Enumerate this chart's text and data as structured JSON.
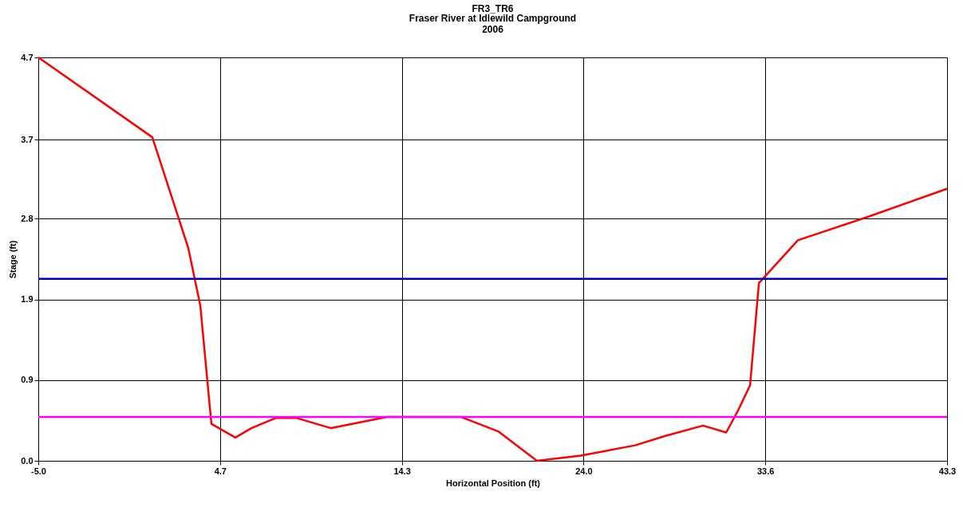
{
  "chart_data": {
    "type": "line",
    "title": "FR3_TR6",
    "subtitle": "Fraser River at Idlewild Campground\n2006",
    "xlabel": "Horizontal Position (ft)",
    "ylabel": "Stage (ft)",
    "x": [
      -5.0,
      1.06,
      2.97,
      3.61,
      4.2,
      5.47,
      6.32,
      7.64,
      8.7,
      10.56,
      13.53,
      17.48,
      19.47,
      21.5,
      23.84,
      26.72,
      28.33,
      30.33,
      31.56,
      32.2,
      32.83,
      33.3,
      35.37,
      39.06,
      43.3
    ],
    "series": [
      {
        "color": "#ff0000",
        "values": [
          4.7,
          3.77,
          2.48,
          1.81,
          0.43,
          0.27,
          0.38,
          0.5,
          0.5,
          0.38,
          0.51,
          0.51,
          0.34,
          0.0,
          0.06,
          0.18,
          0.29,
          0.41,
          0.33,
          0.59,
          0.88,
          2.07,
          2.57,
          2.84,
          3.17
        ]
      }
    ],
    "xlim": [
      -5.0,
      43.3
    ],
    "ylim": [
      0.0,
      4.7
    ],
    "xticks": [
      {
        "value": -5.0,
        "label": "-5.0"
      },
      {
        "value": 4.66,
        "label": "4.7"
      },
      {
        "value": 14.32,
        "label": "14.3"
      },
      {
        "value": 23.98,
        "label": "24.0"
      },
      {
        "value": 33.64,
        "label": "33.6"
      },
      {
        "value": 43.3,
        "label": "43.3"
      }
    ],
    "yticks": [
      {
        "value": 0.0,
        "label": "0.0"
      },
      {
        "value": 0.94,
        "label": "0.9"
      },
      {
        "value": 1.88,
        "label": "1.9"
      },
      {
        "value": 2.82,
        "label": "2.8"
      },
      {
        "value": 3.74,
        "label": "3.7"
      },
      {
        "value": 4.7,
        "label": "4.7"
      }
    ],
    "ref_lines": [
      {
        "axis": "y",
        "value": 2.12,
        "color": "#0000cc"
      },
      {
        "axis": "y",
        "value": 0.51,
        "color": "#ff00ff"
      }
    ],
    "grid": true,
    "marker": "none",
    "line_style": "solid"
  }
}
